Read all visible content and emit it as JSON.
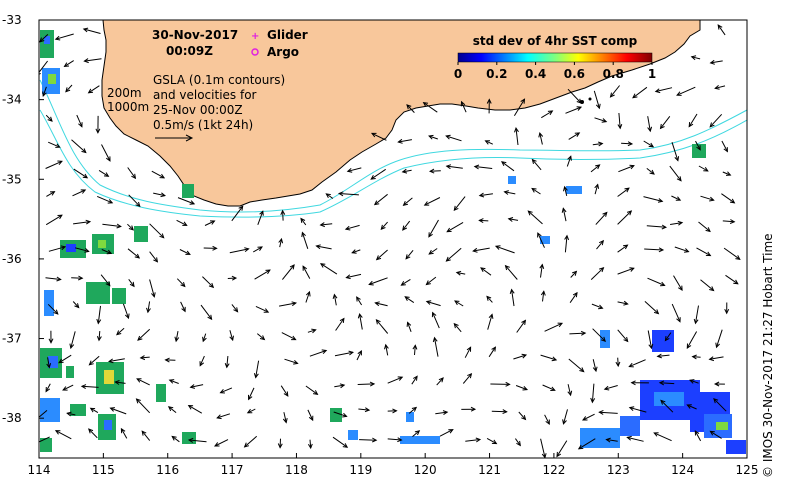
{
  "header": {
    "date": "30-Nov-2017",
    "time": "00:09Z"
  },
  "legend_markers": [
    {
      "label": "Glider",
      "symbol": "+",
      "color": "#e020e0"
    },
    {
      "label": "Argo",
      "symbol": "o",
      "color": "#e020e0"
    }
  ],
  "contour_legend": {
    "levels": [
      "200m",
      "1000m"
    ],
    "color": "#40d8e0"
  },
  "info_lines": [
    "GSLA (0.1m contours)",
    "and velocities for",
    "25-Nov 00:00Z",
    "0.5m/s (1kt 24h)"
  ],
  "colorbar": {
    "title": "std dev of 4hr SST comp",
    "tick_labels": [
      "0",
      "0.2",
      "0.4",
      "0.6",
      "0.8",
      "1"
    ],
    "colormap": "jet"
  },
  "axes": {
    "x_ticks": [
      "114",
      "115",
      "116",
      "117",
      "118",
      "119",
      "120",
      "121",
      "122",
      "123",
      "124",
      "125"
    ],
    "y_ticks": [
      "-33",
      "-34",
      "-35",
      "-36",
      "-37",
      "-38"
    ],
    "x_range": [
      114,
      125
    ],
    "y_range": [
      -38.5,
      -33
    ]
  },
  "credit": "© IMOS 30-Nov-2017 21:27 Hobart Time",
  "colors": {
    "land": "#f8c79b",
    "land_edge": "#000000",
    "vector": "#000000"
  }
}
